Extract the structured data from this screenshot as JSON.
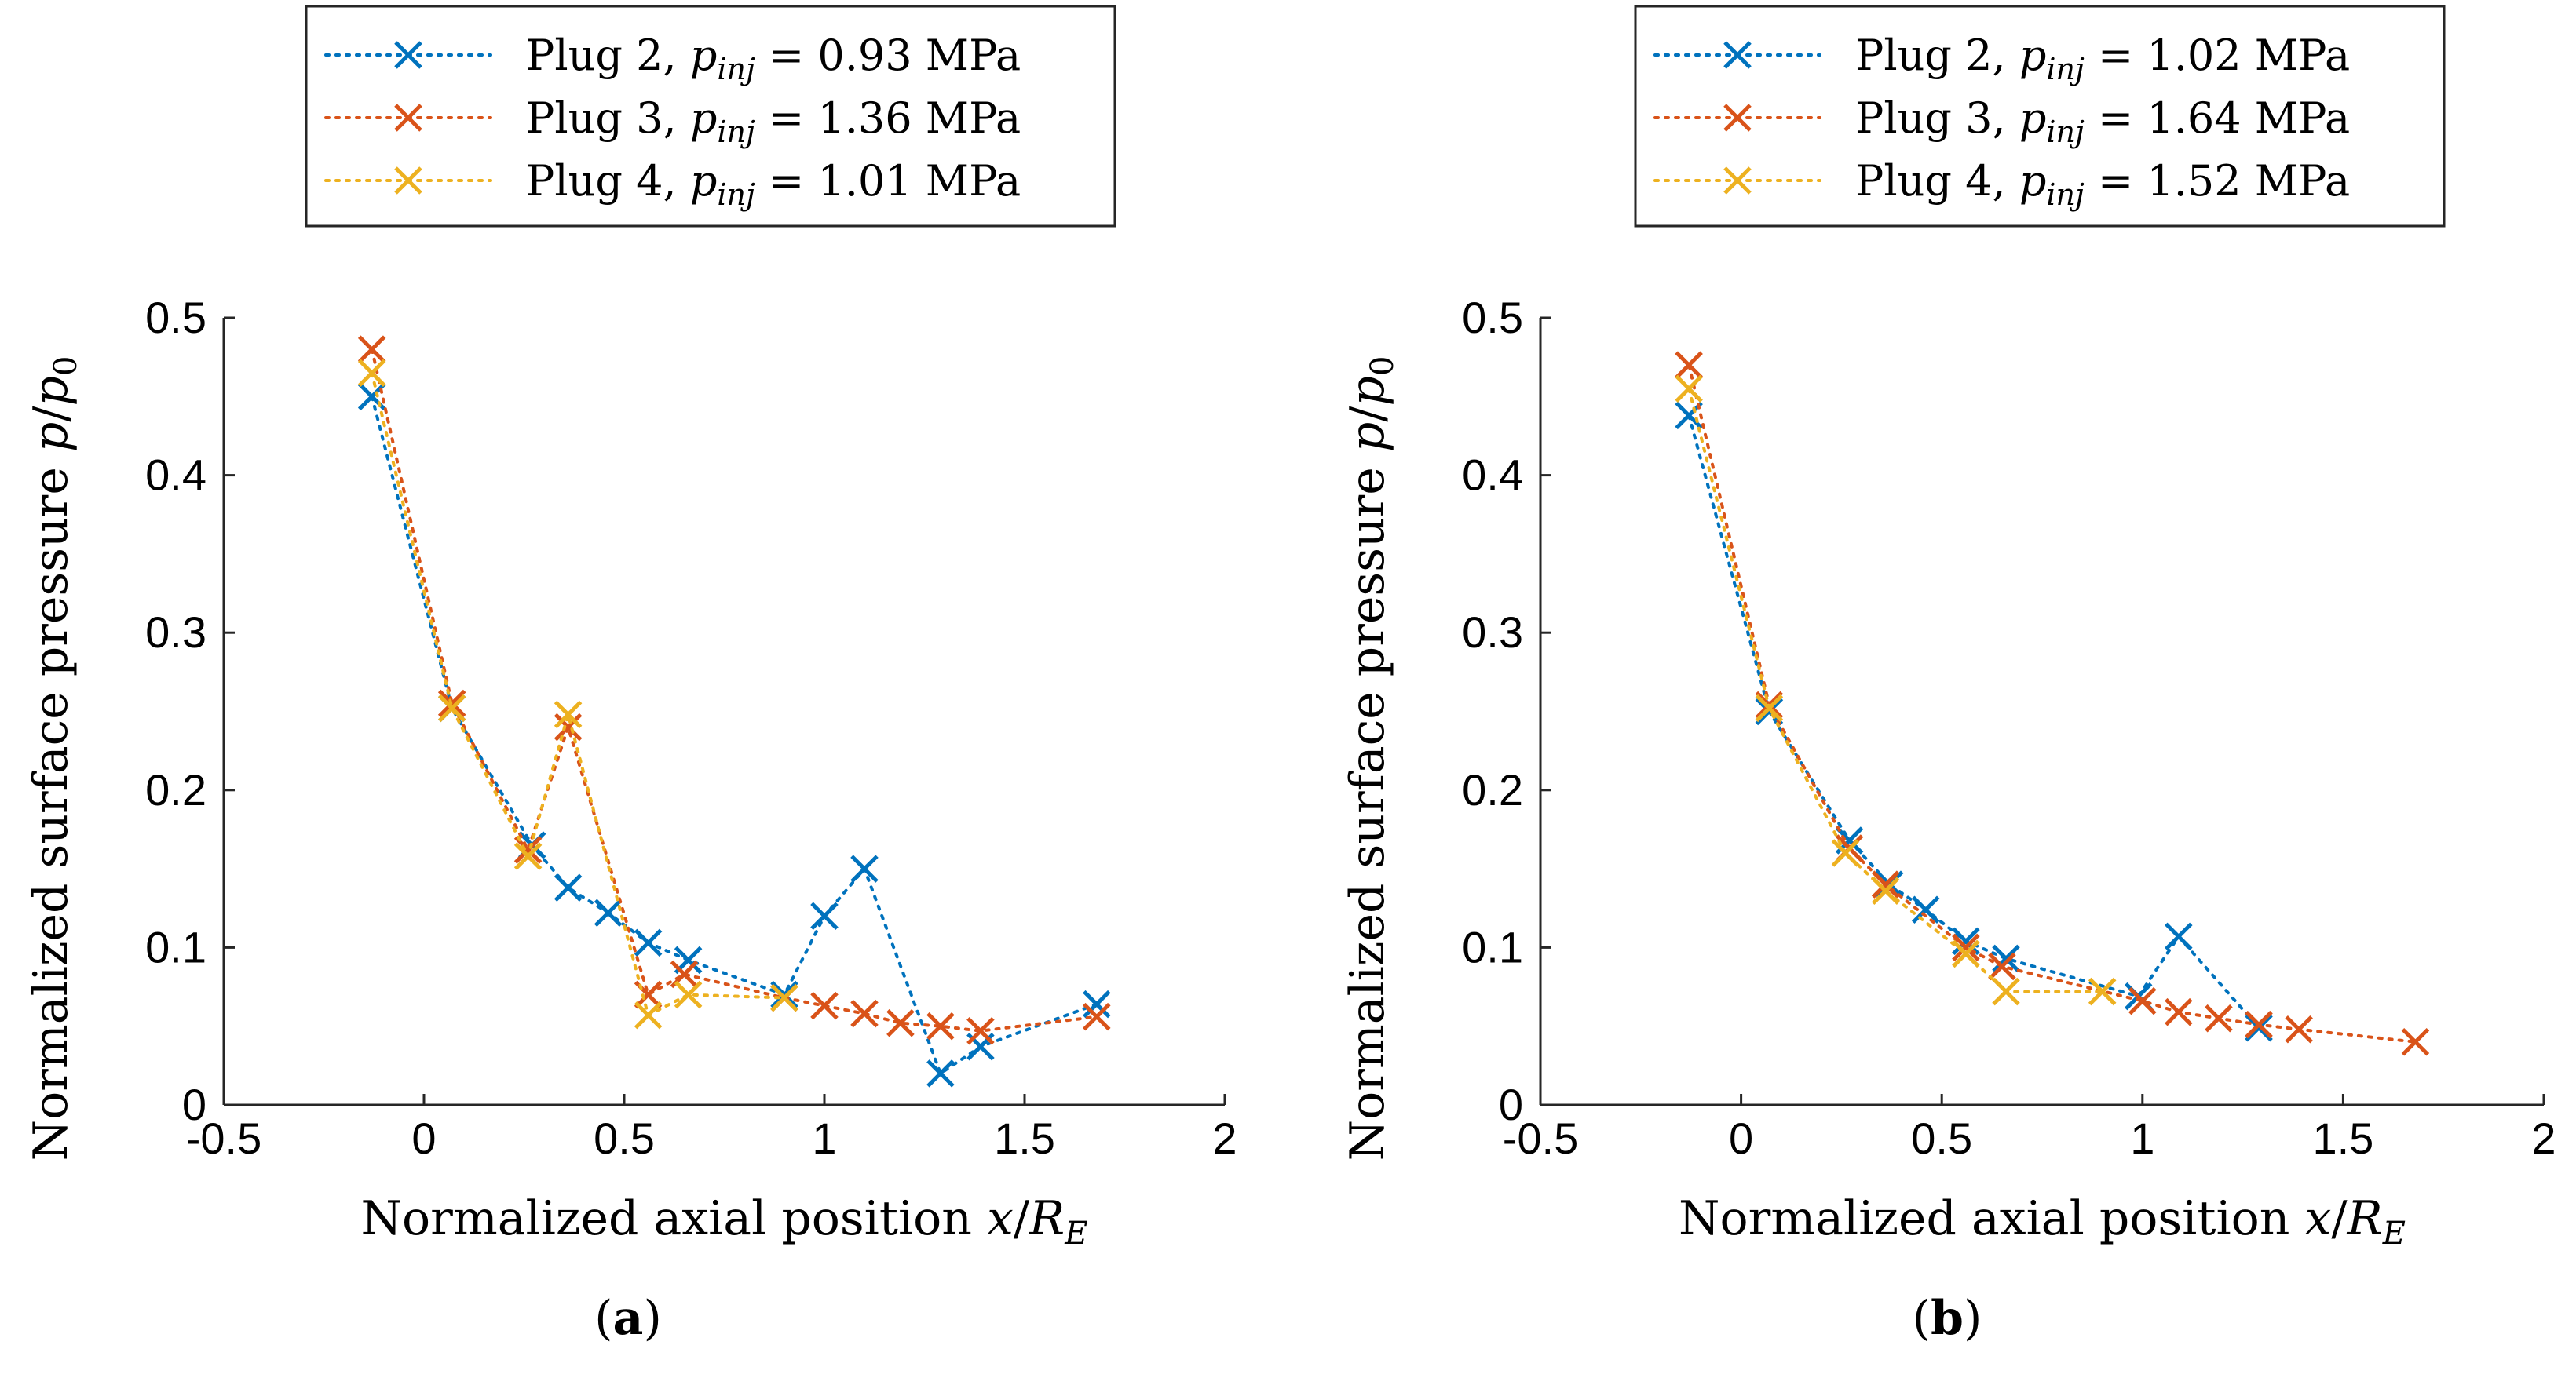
{
  "chart_data": [
    {
      "type": "line",
      "panel_label": "(a)",
      "xlabel": "Normalized axial position x/R_E",
      "ylabel": "Normalized surface pressure p/p_0",
      "xlim": [
        -0.5,
        2
      ],
      "ylim": [
        0,
        0.5
      ],
      "xticks": [
        "-0.5",
        "0",
        "0.5",
        "1",
        "1.5",
        "2"
      ],
      "yticks": [
        "0",
        "0.1",
        "0.2",
        "0.3",
        "0.4",
        "0.5"
      ],
      "legend_position": "top",
      "series": [
        {
          "name": "Plug 2",
          "p_inj": "0.93",
          "unit": "MPa",
          "color": "#0072BD",
          "points": [
            [
              -0.13,
              0.45
            ],
            [
              0.07,
              0.252
            ],
            [
              0.27,
              0.165
            ],
            [
              0.36,
              0.138
            ],
            [
              0.46,
              0.122
            ],
            [
              0.56,
              0.103
            ],
            [
              0.66,
              0.092
            ],
            [
              0.9,
              0.07
            ],
            [
              1.0,
              0.12
            ],
            [
              1.1,
              0.15
            ],
            [
              1.29,
              0.02
            ],
            [
              1.39,
              0.037
            ],
            [
              1.68,
              0.064
            ]
          ]
        },
        {
          "name": "Plug 3",
          "p_inj": "1.36",
          "unit": "MPa",
          "color": "#D95319",
          "points": [
            [
              -0.13,
              0.48
            ],
            [
              0.07,
              0.255
            ],
            [
              0.26,
              0.162
            ],
            [
              0.36,
              0.24
            ],
            [
              0.56,
              0.07
            ],
            [
              0.65,
              0.083
            ],
            [
              0.9,
              0.068
            ],
            [
              1.0,
              0.063
            ],
            [
              1.1,
              0.058
            ],
            [
              1.19,
              0.052
            ],
            [
              1.29,
              0.05
            ],
            [
              1.39,
              0.047
            ],
            [
              1.68,
              0.056
            ]
          ]
        },
        {
          "name": "Plug 4",
          "p_inj": "1.01",
          "unit": "MPa",
          "color": "#EDB120",
          "points": [
            [
              -0.13,
              0.465
            ],
            [
              0.07,
              0.252
            ],
            [
              0.26,
              0.158
            ],
            [
              0.36,
              0.248
            ],
            [
              0.56,
              0.057
            ],
            [
              0.66,
              0.07
            ],
            [
              0.9,
              0.068
            ]
          ]
        }
      ]
    },
    {
      "type": "line",
      "panel_label": "(b)",
      "xlabel": "Normalized axial position x/R_E",
      "ylabel": "Normalized surface pressure p/p_0",
      "xlim": [
        -0.5,
        2
      ],
      "ylim": [
        0,
        0.5
      ],
      "xticks": [
        "-0.5",
        "0",
        "0.5",
        "1",
        "1.5",
        "2"
      ],
      "yticks": [
        "0",
        "0.1",
        "0.2",
        "0.3",
        "0.4",
        "0.5"
      ],
      "legend_position": "top",
      "series": [
        {
          "name": "Plug 2",
          "p_inj": "1.02",
          "unit": "MPa",
          "color": "#0072BD",
          "points": [
            [
              -0.13,
              0.438
            ],
            [
              0.07,
              0.25
            ],
            [
              0.27,
              0.168
            ],
            [
              0.37,
              0.14
            ],
            [
              0.46,
              0.124
            ],
            [
              0.56,
              0.104
            ],
            [
              0.66,
              0.093
            ],
            [
              0.99,
              0.069
            ],
            [
              1.09,
              0.107
            ],
            [
              1.29,
              0.049
            ]
          ]
        },
        {
          "name": "Plug 3",
          "p_inj": "1.64",
          "unit": "MPa",
          "color": "#D95319",
          "points": [
            [
              -0.13,
              0.47
            ],
            [
              0.07,
              0.254
            ],
            [
              0.27,
              0.163
            ],
            [
              0.36,
              0.14
            ],
            [
              0.56,
              0.1
            ],
            [
              0.65,
              0.088
            ],
            [
              1.0,
              0.066
            ],
            [
              1.09,
              0.059
            ],
            [
              1.19,
              0.055
            ],
            [
              1.29,
              0.051
            ],
            [
              1.39,
              0.048
            ],
            [
              1.68,
              0.04
            ]
          ]
        },
        {
          "name": "Plug 4",
          "p_inj": "1.52",
          "unit": "MPa",
          "color": "#EDB120",
          "points": [
            [
              -0.13,
              0.455
            ],
            [
              0.07,
              0.252
            ],
            [
              0.26,
              0.16
            ],
            [
              0.36,
              0.136
            ],
            [
              0.56,
              0.096
            ],
            [
              0.66,
              0.072
            ],
            [
              0.9,
              0.072
            ]
          ]
        }
      ]
    }
  ]
}
